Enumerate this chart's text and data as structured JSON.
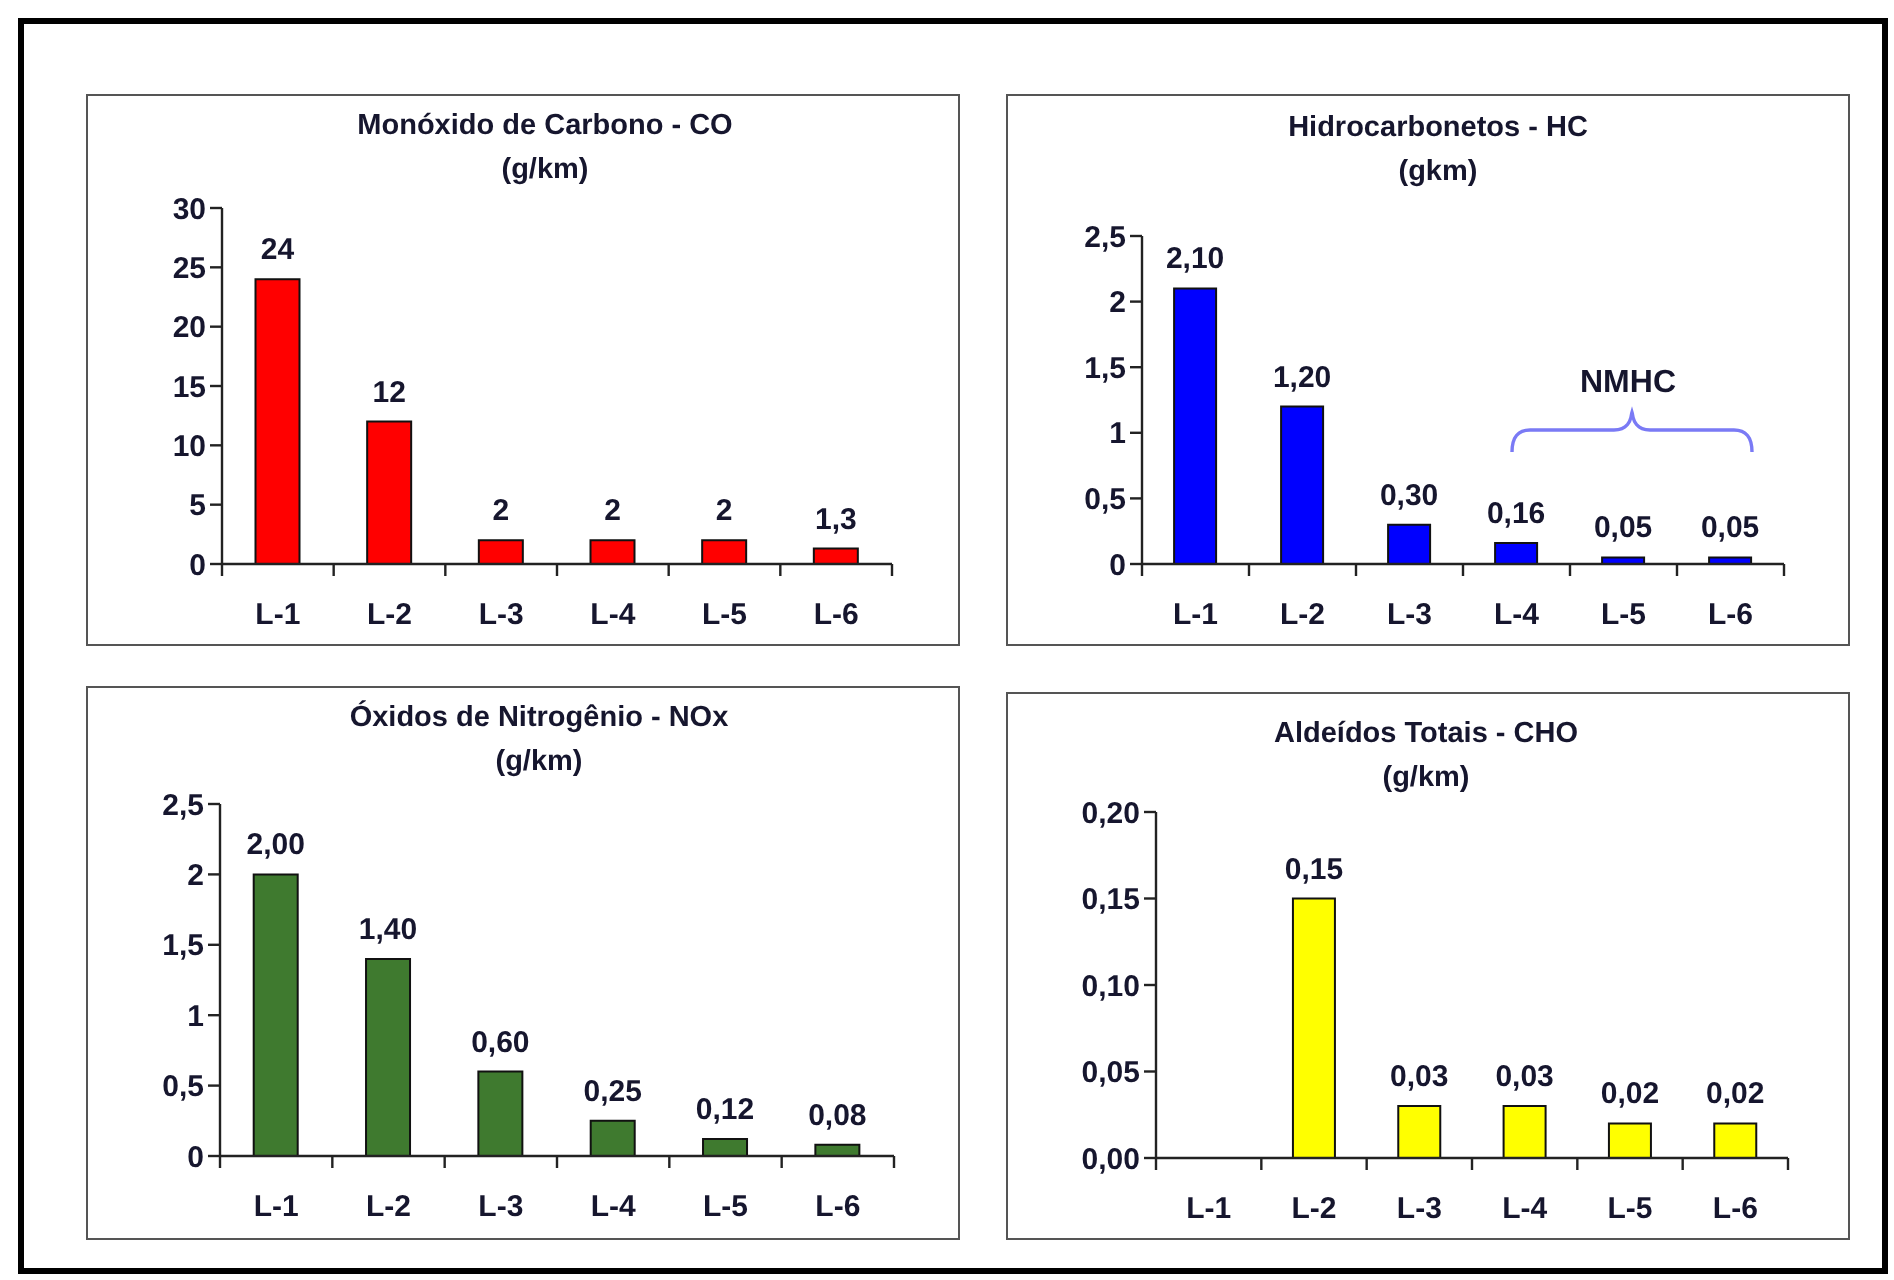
{
  "chart_data": [
    {
      "type": "bar",
      "title": "Monóxido de Carbono - CO",
      "subtitle": "(g/km)",
      "categories": [
        "L-1",
        "L-2",
        "L-3",
        "L-4",
        "L-5",
        "L-6"
      ],
      "values": [
        24,
        12,
        2,
        2,
        2,
        1.3
      ],
      "value_labels": [
        "24",
        "12",
        "2",
        "2",
        "2",
        "1,3"
      ],
      "color": "#ff0000",
      "ylim": [
        0,
        30
      ],
      "yticks": [
        0,
        5,
        10,
        15,
        20,
        25,
        30
      ]
    },
    {
      "type": "bar",
      "title": "Hidrocarbonetos - HC",
      "subtitle": "(gkm)",
      "categories": [
        "L-1",
        "L-2",
        "L-3",
        "L-4",
        "L-5",
        "L-6"
      ],
      "values": [
        2.1,
        1.2,
        0.3,
        0.16,
        0.05,
        0.05
      ],
      "value_labels": [
        "2,10",
        "1,20",
        "0,30",
        "0,16",
        "0,05",
        "0,05"
      ],
      "color": "#0000ff",
      "ylim": [
        0,
        2.5
      ],
      "yticks": [
        0,
        {
          "value": 0.5,
          "label": "0,5"
        },
        1,
        {
          "value": 1.5,
          "label": "1,5"
        },
        2,
        {
          "value": 2.5,
          "label": "2,5"
        }
      ],
      "annotations": [
        "NMHC"
      ]
    },
    {
      "type": "bar",
      "title": "Óxidos de Nitrogênio - NOx",
      "subtitle": "(g/km)",
      "categories": [
        "L-1",
        "L-2",
        "L-3",
        "L-4",
        "L-5",
        "L-6"
      ],
      "values": [
        2,
        1.4,
        0.6,
        0.25,
        0.12,
        0.08
      ],
      "value_labels": [
        "2,00",
        "1,40",
        "0,60",
        "0,25",
        "0,12",
        "0,08"
      ],
      "color": "#3f7a2f",
      "ylim": [
        0,
        2.5
      ],
      "yticks": [
        0,
        {
          "value": 0.5,
          "label": "0,5"
        },
        1,
        {
          "value": 1.5,
          "label": "1,5"
        },
        2,
        {
          "value": 2.5,
          "label": "2,5"
        }
      ]
    },
    {
      "type": "bar",
      "title": "Aldeídos Totais - CHO",
      "subtitle": "(g/km)",
      "categories": [
        "L-1",
        "L-2",
        "L-3",
        "L-4",
        "L-5",
        "L-6"
      ],
      "values": [
        null,
        0.15,
        0.03,
        0.03,
        0.02,
        0.02
      ],
      "value_labels": [
        null,
        "0,15",
        "0,03",
        "0,03",
        "0,02",
        "0,02"
      ],
      "color": "#ffff00",
      "ylim": [
        0,
        0.2
      ],
      "yticks": [
        {
          "value": 0,
          "label": "0,00"
        },
        {
          "value": 0.05,
          "label": "0,05"
        },
        {
          "value": 0.1,
          "label": "0,10"
        },
        {
          "value": 0.15,
          "label": "0,15"
        },
        {
          "value": 0.2,
          "label": "0,20"
        }
      ]
    }
  ]
}
